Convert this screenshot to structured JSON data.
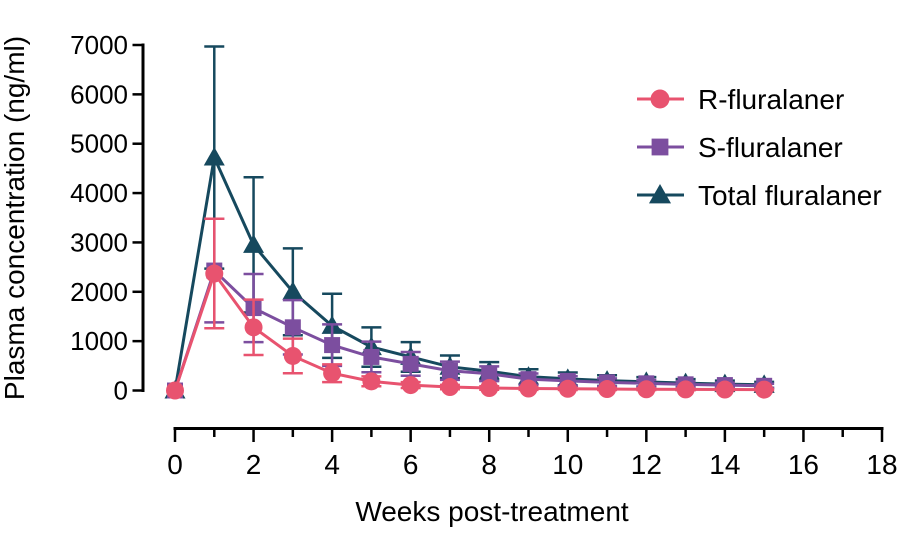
{
  "figure": {
    "background": "#ffffff",
    "axis_color": "#000000",
    "text_color": "#000000"
  },
  "chart_data": {
    "type": "line",
    "title": "",
    "xlabel": "Weeks post-treatment",
    "ylabel": "Plasma concentration (ng/ml)",
    "x": [
      0,
      1,
      2,
      3,
      4,
      5,
      6,
      7,
      8,
      9,
      10,
      11,
      12,
      13,
      14,
      15
    ],
    "xlim": [
      0,
      18
    ],
    "ylim": [
      0,
      7000
    ],
    "x_major_ticks": [
      0,
      2,
      4,
      6,
      8,
      10,
      12,
      14,
      16,
      18
    ],
    "x_minor_ticks": [
      1,
      3,
      5,
      7,
      9,
      11,
      13,
      15,
      17
    ],
    "y_ticks": [
      0,
      1000,
      2000,
      3000,
      4000,
      5000,
      6000,
      7000
    ],
    "grid": false,
    "legend_position": "upper-right",
    "error_bars": "sd, symmetric, capped",
    "series": [
      {
        "name": "R-fluralaner",
        "marker": "circle-marker-icon",
        "color": "#E8536F",
        "values": [
          0,
          2370,
          1280,
          700,
          350,
          185,
          110,
          70,
          50,
          40,
          35,
          30,
          25,
          22,
          20,
          18
        ],
        "sd": [
          0,
          1110,
          560,
          350,
          180,
          100,
          60,
          45,
          35,
          28,
          24,
          20,
          18,
          15,
          13,
          12
        ]
      },
      {
        "name": "S-fluralaner",
        "marker": "square-marker-icon",
        "color": "#7C4E9F",
        "values": [
          0,
          2430,
          1670,
          1280,
          920,
          680,
          540,
          400,
          340,
          230,
          195,
          165,
          145,
          125,
          110,
          95
        ],
        "sd": [
          0,
          1050,
          690,
          550,
          420,
          310,
          240,
          185,
          150,
          115,
          95,
          80,
          68,
          58,
          50,
          42
        ]
      },
      {
        "name": "Total fluralaner",
        "marker": "triangle-marker-icon",
        "color": "#16495E",
        "values": [
          0,
          4720,
          2950,
          2000,
          1310,
          880,
          680,
          480,
          390,
          280,
          235,
          200,
          175,
          150,
          130,
          115
        ],
        "sd": [
          0,
          2250,
          1370,
          880,
          650,
          400,
          300,
          230,
          185,
          150,
          130,
          110,
          95,
          80,
          70,
          60
        ]
      }
    ]
  }
}
